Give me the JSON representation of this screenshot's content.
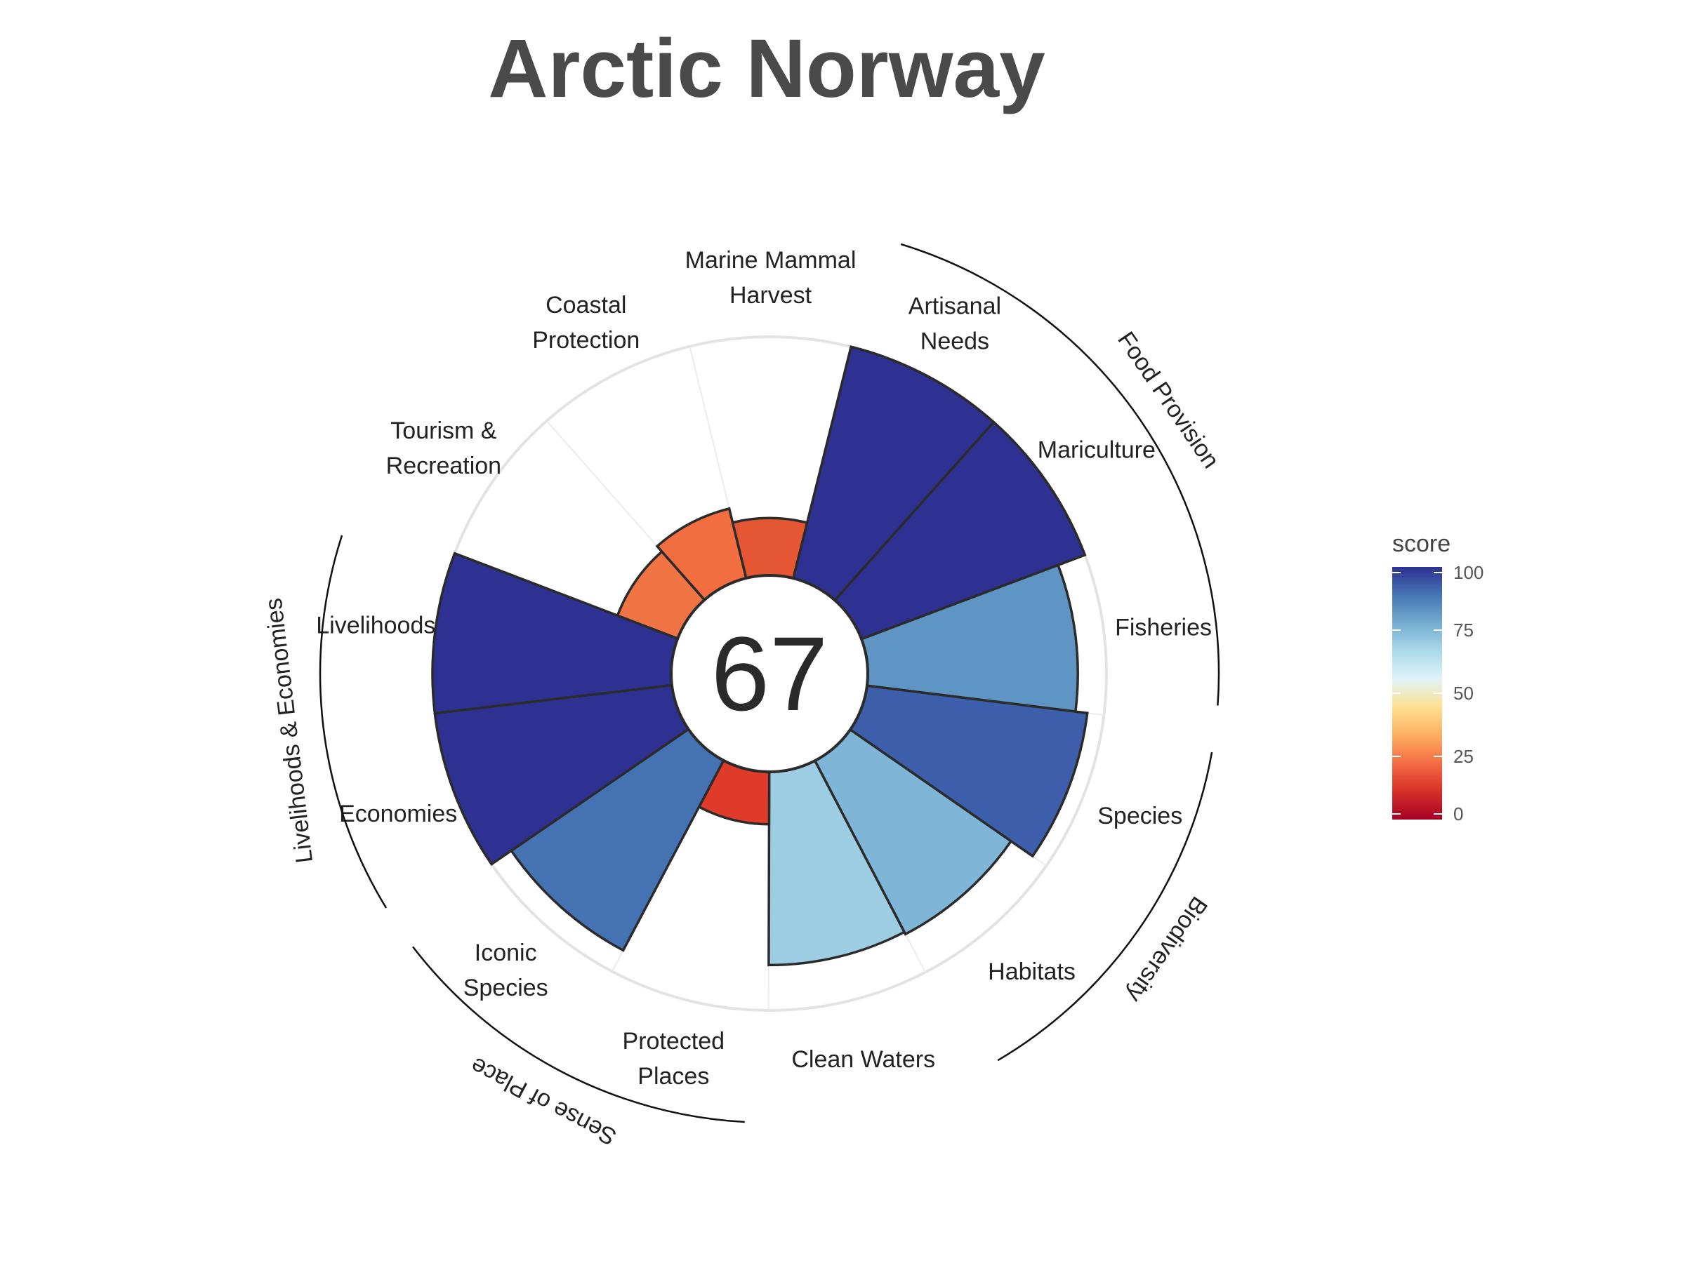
{
  "chart_data": {
    "type": "polar-bar",
    "title": "Arctic Norway",
    "center_score": "67",
    "goals": [
      {
        "name": "Artisanal Needs",
        "lines": [
          "Artisanal",
          "Needs"
        ],
        "value": 100,
        "color": "#2e3192"
      },
      {
        "name": "Mariculture",
        "lines": [
          "Mariculture"
        ],
        "value": 100,
        "color": "#2e3192"
      },
      {
        "name": "Fisheries",
        "lines": [
          "Fisheries"
        ],
        "value": 88,
        "color": "#5e95c5"
      },
      {
        "name": "Species",
        "lines": [
          "Species"
        ],
        "value": 93,
        "color": "#3d5eaa"
      },
      {
        "name": "Habitats",
        "lines": [
          "Habitats"
        ],
        "value": 82,
        "color": "#7fb5d7"
      },
      {
        "name": "Clean Waters",
        "lines": [
          "Clean Waters"
        ],
        "value": 81,
        "color": "#9ccde3"
      },
      {
        "name": "Protected Places",
        "lines": [
          "Protected",
          "Places"
        ],
        "value": 22,
        "color": "#e03a2b"
      },
      {
        "name": "Iconic Species",
        "lines": [
          "Iconic",
          "Species"
        ],
        "value": 90,
        "color": "#4472b3"
      },
      {
        "name": "Economies",
        "lines": [
          "Economies"
        ],
        "value": 100,
        "color": "#2e3192"
      },
      {
        "name": "Livelihoods",
        "lines": [
          "Livelihoods"
        ],
        "value": 100,
        "color": "#2e3192"
      },
      {
        "name": "Tourism & Recreation",
        "lines": [
          "Tourism &",
          "Recreation"
        ],
        "value": 27,
        "color": "#f07444"
      },
      {
        "name": "Coastal Protection",
        "lines": [
          "Coastal",
          "Protection"
        ],
        "value": 30,
        "color": "#f26e40"
      },
      {
        "name": "Marine Mammal Harvest",
        "lines": [
          "Marine Mammal",
          "Harvest"
        ],
        "value": 24,
        "color": "#e55632"
      }
    ],
    "groups": [
      {
        "name": "Food Provision",
        "first": 0,
        "last": 2
      },
      {
        "name": "Biodiversity",
        "first": 3,
        "last": 4
      },
      {
        "name": "Sense of Place",
        "first": 6,
        "last": 7
      },
      {
        "name": "Livelihoods & Economies",
        "first": 8,
        "last": 9
      }
    ],
    "legend": {
      "title": "score",
      "ticks": [
        0,
        25,
        50,
        75,
        100
      ],
      "colors": [
        "#a50026",
        "#d73027",
        "#f46d43",
        "#fdae61",
        "#fee090",
        "#e0f3f8",
        "#abd9e9",
        "#74add1",
        "#4575b4",
        "#2e3192"
      ]
    },
    "ylim": [
      0,
      100
    ]
  }
}
